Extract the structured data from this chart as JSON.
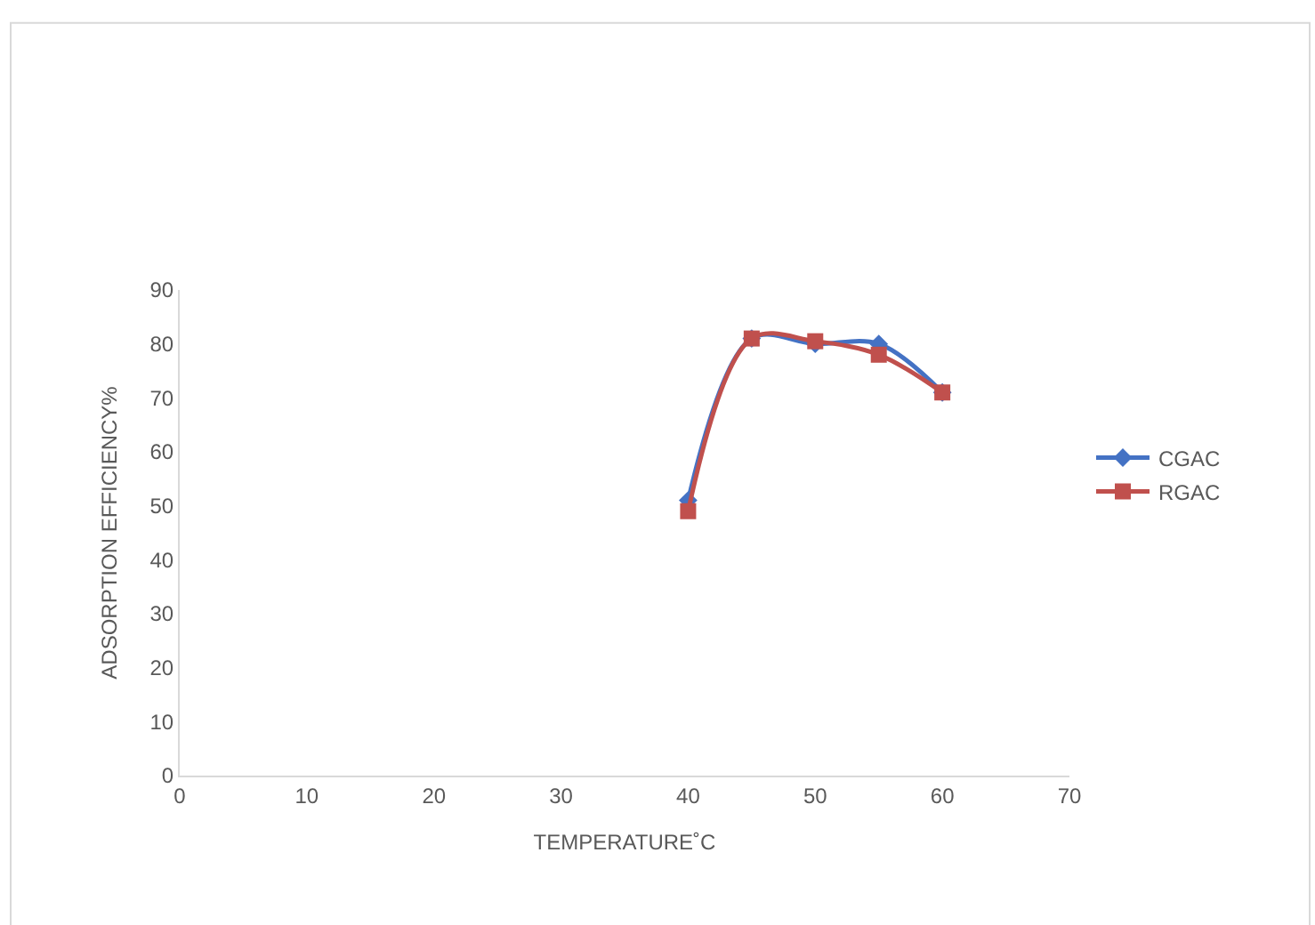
{
  "chart_data": {
    "type": "line",
    "xlabel": "TEMPERATURE˚C",
    "ylabel": "ADSORPTION EFFICIENCY%",
    "x": [
      40,
      45,
      50,
      55,
      60
    ],
    "series": [
      {
        "name": "CGAC",
        "color": "#4472c4",
        "marker": "diamond",
        "values": [
          51,
          81,
          80,
          80,
          71
        ]
      },
      {
        "name": "RGAC",
        "color": "#c0504d",
        "marker": "square",
        "values": [
          49,
          81,
          80.5,
          78,
          71
        ]
      }
    ],
    "xlim": [
      0,
      70
    ],
    "xticks": [
      0,
      10,
      20,
      30,
      40,
      50,
      60,
      70
    ],
    "ylim": [
      0,
      90
    ],
    "yticks": [
      0,
      10,
      20,
      30,
      40,
      50,
      60,
      70,
      80,
      90
    ],
    "grid": false,
    "legend": "right",
    "line_style": "solid"
  }
}
